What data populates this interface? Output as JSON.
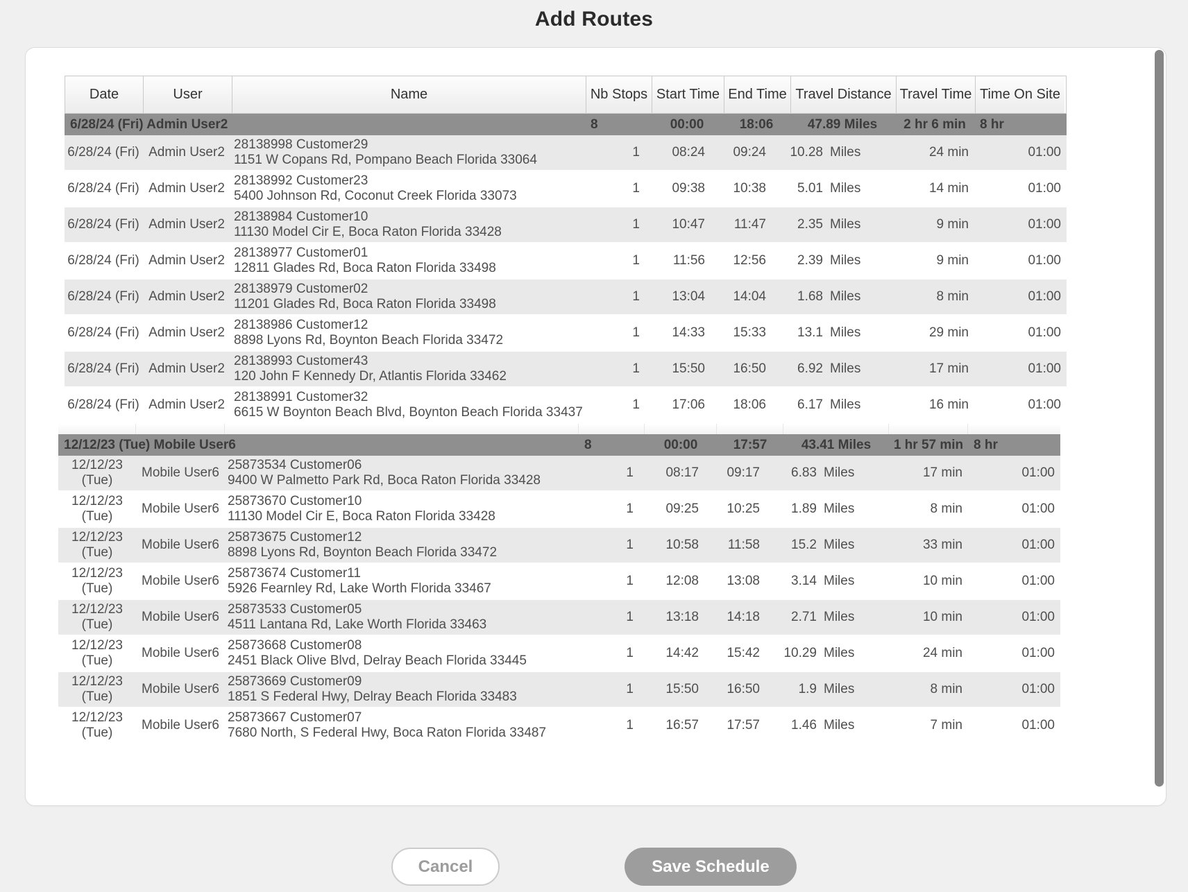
{
  "page": {
    "title": "Add Routes"
  },
  "colors": {
    "page_background": "#f0f0f1",
    "panel_background": "#ffffff",
    "group_header_background": "#8f8f8f",
    "row_alternate_background": "#e9e9e9",
    "scrollbar_thumb": "#868686",
    "save_button_background": "#9d9d9d",
    "cancel_button_text": "#9c9c9c"
  },
  "table": {
    "columns": [
      {
        "id": "date",
        "label": "Date"
      },
      {
        "id": "user",
        "label": "User"
      },
      {
        "id": "name",
        "label": "Name"
      },
      {
        "id": "stops",
        "label": "Nb Stops"
      },
      {
        "id": "start",
        "label": "Start Time"
      },
      {
        "id": "end",
        "label": "End Time"
      },
      {
        "id": "dist",
        "label": "Travel Distance"
      },
      {
        "id": "ttime",
        "label": "Travel Time"
      },
      {
        "id": "tsite",
        "label": "Time On Site"
      }
    ],
    "groups": [
      {
        "date": "6/28/24 (Fri)",
        "user": "Admin User2",
        "nb_stops": "8",
        "start_time": "00:00",
        "end_time": "18:06",
        "travel_distance": "47.89 Miles",
        "travel_time": "2 hr 6 min",
        "time_on_site": "8 hr",
        "rows": [
          {
            "date": "6/28/24 (Fri)",
            "user": "Admin User2",
            "name_line1": "28138998 Customer29",
            "name_line2": "1151 W Copans Rd, Pompano Beach Florida 33064",
            "nb_stops": "1",
            "start_time": "08:24",
            "end_time": "09:24",
            "distance_value": "10.28",
            "distance_unit": "Miles",
            "travel_time": "24 min",
            "time_on_site": "01:00"
          },
          {
            "date": "6/28/24 (Fri)",
            "user": "Admin User2",
            "name_line1": "28138992 Customer23",
            "name_line2": "5400 Johnson Rd, Coconut Creek Florida 33073",
            "nb_stops": "1",
            "start_time": "09:38",
            "end_time": "10:38",
            "distance_value": "5.01",
            "distance_unit": "Miles",
            "travel_time": "14 min",
            "time_on_site": "01:00"
          },
          {
            "date": "6/28/24 (Fri)",
            "user": "Admin User2",
            "name_line1": "28138984 Customer10",
            "name_line2": "11130 Model Cir E, Boca Raton Florida 33428",
            "nb_stops": "1",
            "start_time": "10:47",
            "end_time": "11:47",
            "distance_value": "2.35",
            "distance_unit": "Miles",
            "travel_time": "9 min",
            "time_on_site": "01:00"
          },
          {
            "date": "6/28/24 (Fri)",
            "user": "Admin User2",
            "name_line1": "28138977 Customer01",
            "name_line2": "12811 Glades Rd, Boca Raton Florida 33498",
            "nb_stops": "1",
            "start_time": "11:56",
            "end_time": "12:56",
            "distance_value": "2.39",
            "distance_unit": "Miles",
            "travel_time": "9 min",
            "time_on_site": "01:00"
          },
          {
            "date": "6/28/24 (Fri)",
            "user": "Admin User2",
            "name_line1": "28138979 Customer02",
            "name_line2": "11201 Glades Rd, Boca Raton Florida 33498",
            "nb_stops": "1",
            "start_time": "13:04",
            "end_time": "14:04",
            "distance_value": "1.68",
            "distance_unit": "Miles",
            "travel_time": "8 min",
            "time_on_site": "01:00"
          },
          {
            "date": "6/28/24 (Fri)",
            "user": "Admin User2",
            "name_line1": "28138986 Customer12",
            "name_line2": "8898 Lyons Rd, Boynton Beach Florida 33472",
            "nb_stops": "1",
            "start_time": "14:33",
            "end_time": "15:33",
            "distance_value": "13.1",
            "distance_unit": "Miles",
            "travel_time": "29 min",
            "time_on_site": "01:00"
          },
          {
            "date": "6/28/24 (Fri)",
            "user": "Admin User2",
            "name_line1": "28138993 Customer43",
            "name_line2": "120 John F Kennedy Dr, Atlantis Florida 33462",
            "nb_stops": "1",
            "start_time": "15:50",
            "end_time": "16:50",
            "distance_value": "6.92",
            "distance_unit": "Miles",
            "travel_time": "17 min",
            "time_on_site": "01:00"
          },
          {
            "date": "6/28/24 (Fri)",
            "user": "Admin User2",
            "name_line1": "28138991 Customer32",
            "name_line2": "6615 W Boynton Beach Blvd, Boynton Beach Florida 33437",
            "nb_stops": "1",
            "start_time": "17:06",
            "end_time": "18:06",
            "distance_value": "6.17",
            "distance_unit": "Miles",
            "travel_time": "16 min",
            "time_on_site": "01:00"
          }
        ]
      },
      {
        "date": "12/12/23 (Tue)",
        "user": "Mobile User6",
        "nb_stops": "8",
        "start_time": "00:00",
        "end_time": "17:57",
        "travel_distance": "43.41 Miles",
        "travel_time": "1 hr 57 min",
        "time_on_site": "8 hr",
        "rows": [
          {
            "date": "12/12/23 (Tue)",
            "user": "Mobile User6",
            "name_line1": "25873534 Customer06",
            "name_line2": "9400 W Palmetto Park Rd, Boca Raton Florida 33428",
            "nb_stops": "1",
            "start_time": "08:17",
            "end_time": "09:17",
            "distance_value": "6.83",
            "distance_unit": "Miles",
            "travel_time": "17 min",
            "time_on_site": "01:00"
          },
          {
            "date": "12/12/23 (Tue)",
            "user": "Mobile User6",
            "name_line1": "25873670 Customer10",
            "name_line2": "11130 Model Cir E, Boca Raton Florida 33428",
            "nb_stops": "1",
            "start_time": "09:25",
            "end_time": "10:25",
            "distance_value": "1.89",
            "distance_unit": "Miles",
            "travel_time": "8 min",
            "time_on_site": "01:00"
          },
          {
            "date": "12/12/23 (Tue)",
            "user": "Mobile User6",
            "name_line1": "25873675 Customer12",
            "name_line2": "8898 Lyons Rd, Boynton Beach Florida 33472",
            "nb_stops": "1",
            "start_time": "10:58",
            "end_time": "11:58",
            "distance_value": "15.2",
            "distance_unit": "Miles",
            "travel_time": "33 min",
            "time_on_site": "01:00"
          },
          {
            "date": "12/12/23 (Tue)",
            "user": "Mobile User6",
            "name_line1": "25873674 Customer11",
            "name_line2": "5926 Fearnley Rd, Lake Worth Florida 33467",
            "nb_stops": "1",
            "start_time": "12:08",
            "end_time": "13:08",
            "distance_value": "3.14",
            "distance_unit": "Miles",
            "travel_time": "10 min",
            "time_on_site": "01:00"
          },
          {
            "date": "12/12/23 (Tue)",
            "user": "Mobile User6",
            "name_line1": "25873533 Customer05",
            "name_line2": "4511 Lantana Rd, Lake Worth Florida 33463",
            "nb_stops": "1",
            "start_time": "13:18",
            "end_time": "14:18",
            "distance_value": "2.71",
            "distance_unit": "Miles",
            "travel_time": "10 min",
            "time_on_site": "01:00"
          },
          {
            "date": "12/12/23 (Tue)",
            "user": "Mobile User6",
            "name_line1": "25873668 Customer08",
            "name_line2": "2451 Black Olive Blvd, Delray Beach Florida 33445",
            "nb_stops": "1",
            "start_time": "14:42",
            "end_time": "15:42",
            "distance_value": "10.29",
            "distance_unit": "Miles",
            "travel_time": "24 min",
            "time_on_site": "01:00"
          },
          {
            "date": "12/12/23 (Tue)",
            "user": "Mobile User6",
            "name_line1": "25873669 Customer09",
            "name_line2": "1851 S Federal Hwy, Delray Beach Florida 33483",
            "nb_stops": "1",
            "start_time": "15:50",
            "end_time": "16:50",
            "distance_value": "1.9",
            "distance_unit": "Miles",
            "travel_time": "8 min",
            "time_on_site": "01:00"
          },
          {
            "date": "12/12/23 (Tue)",
            "user": "Mobile User6",
            "name_line1": "25873667 Customer07",
            "name_line2": "7680 North, S Federal Hwy, Boca Raton Florida 33487",
            "nb_stops": "1",
            "start_time": "16:57",
            "end_time": "17:57",
            "distance_value": "1.46",
            "distance_unit": "Miles",
            "travel_time": "7 min",
            "time_on_site": "01:00"
          }
        ]
      }
    ]
  },
  "footer": {
    "cancel_label": "Cancel",
    "save_label": "Save Schedule"
  }
}
